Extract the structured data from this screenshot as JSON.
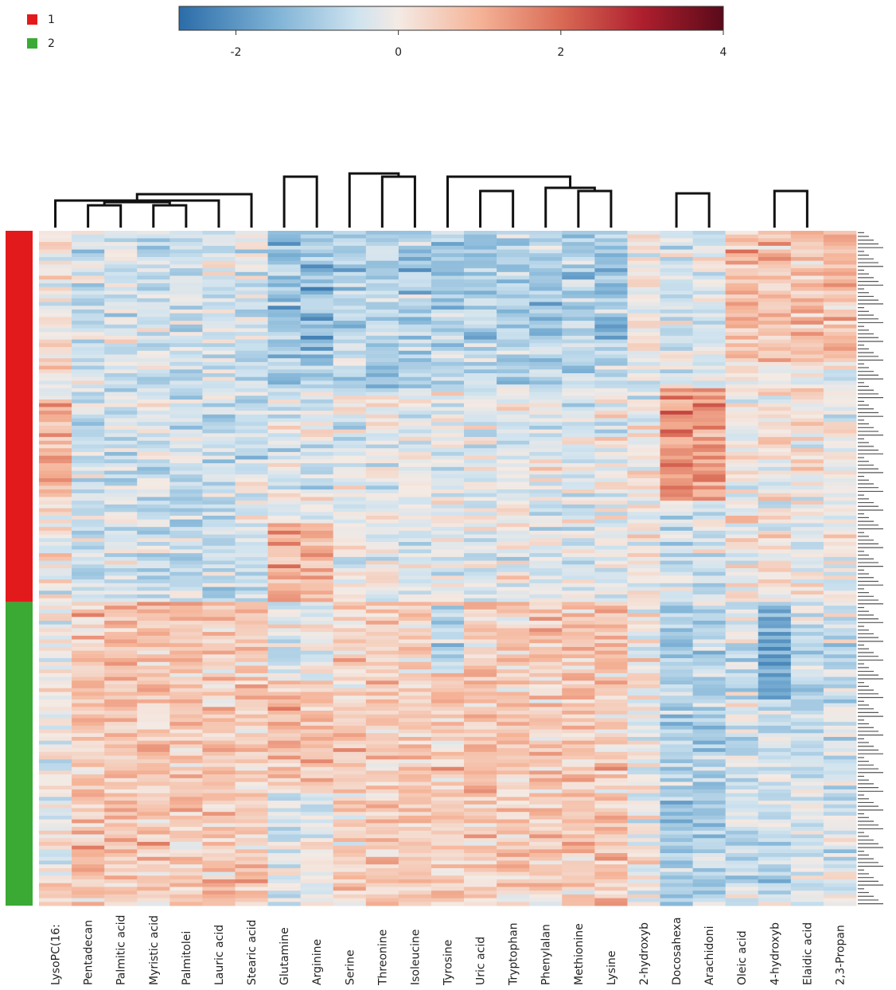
{
  "chart_data": {
    "type": "heatmap",
    "title": "",
    "xlabel": "",
    "ylabel": "",
    "legend": {
      "groups": [
        {
          "label": "1",
          "color": "#e31a1c"
        },
        {
          "label": "2",
          "color": "#3aaa35"
        }
      ]
    },
    "colorbar": {
      "min": -2.7,
      "max": 4,
      "ticks": [
        -2,
        0,
        2,
        4
      ],
      "tick_labels": [
        "-2",
        "0",
        "2",
        "4"
      ],
      "stops": [
        {
          "value": -2.7,
          "color": "#2b6ca8"
        },
        {
          "value": -1.5,
          "color": "#7fb3d6"
        },
        {
          "value": -0.5,
          "color": "#cfe3ef"
        },
        {
          "value": 0,
          "color": "#f4eae4"
        },
        {
          "value": 1,
          "color": "#f5b397"
        },
        {
          "value": 2,
          "color": "#d96a55"
        },
        {
          "value": 3,
          "color": "#ae1f2e"
        },
        {
          "value": 4,
          "color": "#5a0a1a"
        }
      ]
    },
    "columns": [
      "LysoPC(16:",
      "Pentadecan",
      "Palmitic acid",
      "Myristic acid",
      "Palmitolei",
      "Lauric acid",
      "Stearic acid",
      "Glutamine",
      "Arginine",
      "Serine",
      "Threonine",
      "Isoleucine",
      "Tyrosine",
      "Uric acid",
      "Tryptophan",
      "Phenylalan",
      "Methionine",
      "Lysine",
      "2-hydroxyb",
      "Docosahexa",
      "Arachidoni",
      "Oleic acid",
      "4-hydroxyb",
      "Elaidic acid",
      "2,3-Propan"
    ],
    "n_samples": 180,
    "row_groups": [
      {
        "group": "1",
        "count": 99
      },
      {
        "group": "2",
        "count": 81
      }
    ],
    "column_dendrogram": [
      [
        1,
        2
      ],
      [
        3,
        4
      ],
      [
        25,
        26
      ],
      [
        0,
        5
      ],
      [
        27,
        28
      ],
      [
        29,
        6
      ],
      [
        16,
        17
      ],
      [
        15,
        31
      ],
      [
        13,
        14
      ],
      [
        7,
        8
      ],
      [
        10,
        11
      ],
      [
        9,
        35
      ],
      [
        32,
        12
      ],
      [
        37,
        38
      ],
      [
        36,
        39
      ],
      [
        19,
        20
      ],
      [
        22,
        23
      ],
      [
        41,
        24
      ],
      [
        21,
        42
      ],
      [
        18,
        43
      ],
      [
        40,
        17
      ],
      [
        45,
        44
      ],
      [
        30,
        46
      ],
      [
        34,
        47
      ]
    ],
    "row_labels_note": "Sample labels at right are overplotted and illegible"
  }
}
